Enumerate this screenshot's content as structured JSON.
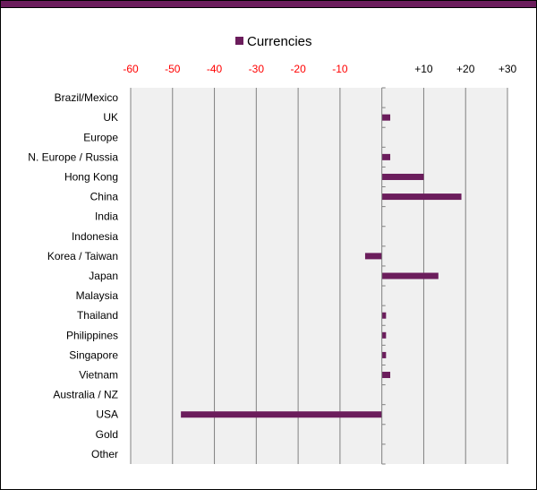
{
  "chart_data": {
    "type": "bar",
    "orientation": "horizontal",
    "legend_position": "top",
    "grid": true,
    "series": [
      {
        "name": "Currencies",
        "color": "#6b1d5c",
        "values": [
          0,
          2,
          0,
          2,
          10,
          19,
          0,
          0,
          -4,
          13.5,
          0,
          1,
          1,
          1,
          2,
          0,
          -48,
          0,
          0
        ]
      }
    ],
    "categories": [
      "Brazil/Mexico",
      "UK",
      "Europe",
      "N. Europe / Russia",
      "Hong Kong",
      "China",
      "India",
      "Indonesia",
      "Korea / Taiwan",
      "Japan",
      "Malaysia",
      "Thailand",
      "Philippines",
      "Singapore",
      "Vietnam",
      "Australia / NZ",
      "USA",
      "Gold",
      "Other"
    ],
    "xlim": [
      -60,
      30
    ],
    "ticks": [
      -60,
      -50,
      -40,
      -30,
      -20,
      -10,
      10,
      20,
      30
    ],
    "tick_labels": [
      "-60",
      "-50",
      "-40",
      "-30",
      "-20",
      "-10",
      "+10",
      "+20",
      "+30"
    ],
    "negative_tick_color": "#ff0000",
    "positive_tick_color": "#000000",
    "plot_background": "#f0f0f0",
    "grid_color": "#808080"
  }
}
